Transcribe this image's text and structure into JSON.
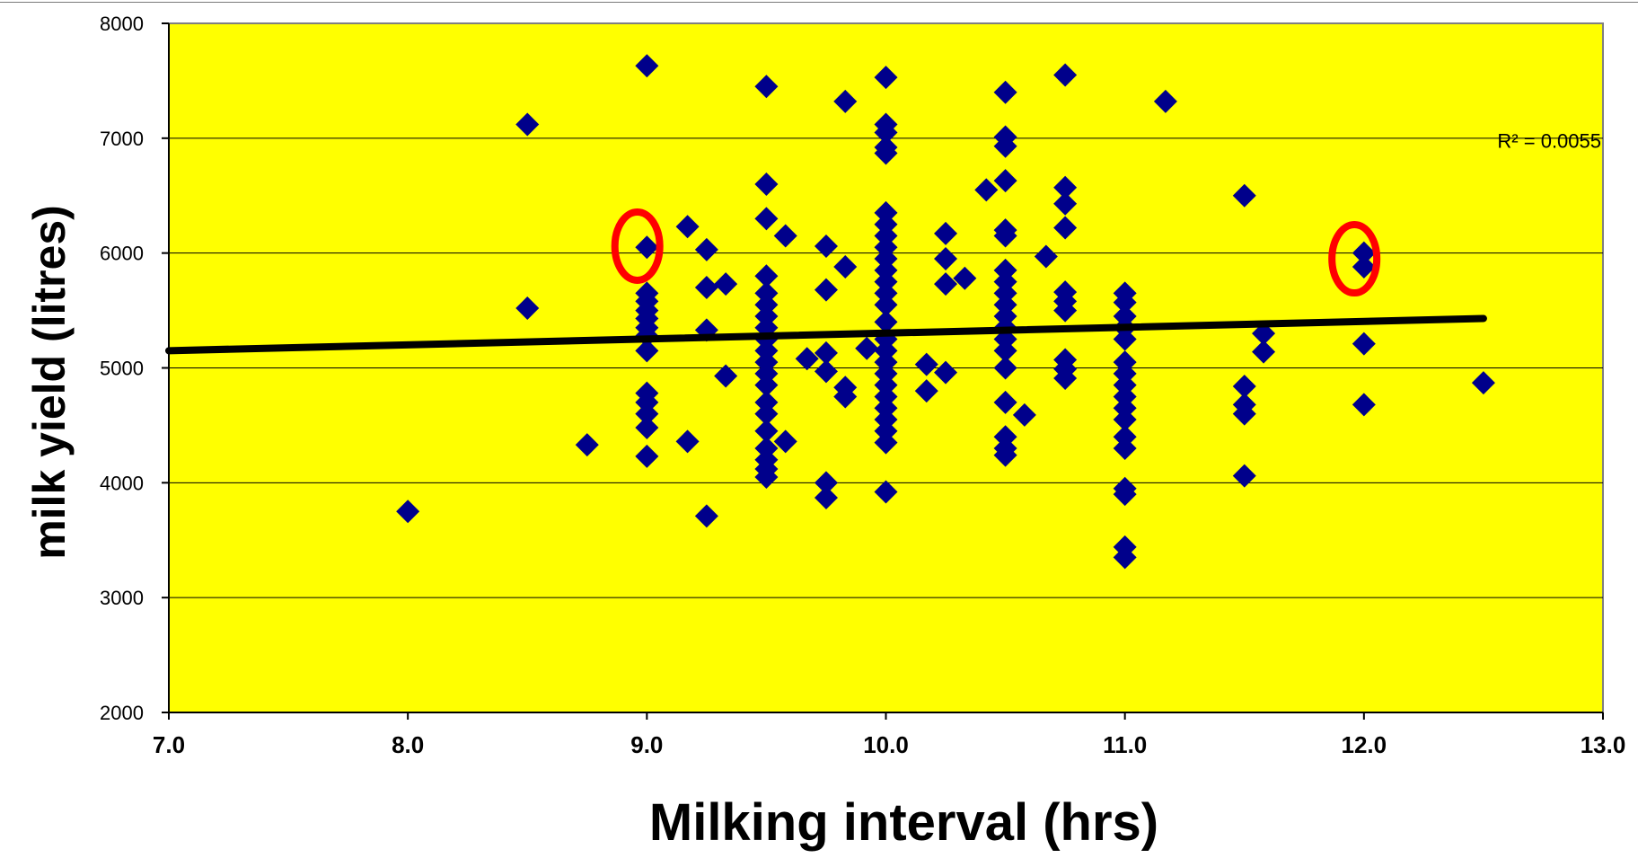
{
  "chart_data": {
    "type": "scatter",
    "xlabel": "Milking interval (hrs)",
    "ylabel": "milk yield (litres)",
    "xlim": [
      7.0,
      13.0
    ],
    "ylim": [
      2000,
      8000
    ],
    "x_ticks": [
      "7.0",
      "8.0",
      "9.0",
      "10.0",
      "11.0",
      "12.0",
      "13.0"
    ],
    "y_ticks": [
      "2000",
      "3000",
      "4000",
      "5000",
      "6000",
      "7000",
      "8000"
    ],
    "grid": "horizontal",
    "plot_background": "#ffff00",
    "marker_color": "#00008b",
    "trendline": {
      "x": [
        7.0,
        12.5
      ],
      "y": [
        5150,
        5430
      ],
      "color": "#000000"
    },
    "annotation": "R² = 0.0055",
    "highlights": [
      {
        "x": 8.96,
        "y": 6060,
        "color": "#ff0000"
      },
      {
        "x": 11.96,
        "y": 5950,
        "color": "#ff0000"
      }
    ],
    "points": [
      [
        8.0,
        3750
      ],
      [
        8.5,
        7120
      ],
      [
        8.5,
        5520
      ],
      [
        8.75,
        4330
      ],
      [
        9.0,
        7630
      ],
      [
        9.0,
        6050
      ],
      [
        9.0,
        5650
      ],
      [
        9.0,
        5580
      ],
      [
        9.0,
        5500
      ],
      [
        9.0,
        5430
      ],
      [
        9.0,
        5350
      ],
      [
        9.0,
        5280
      ],
      [
        9.0,
        5150
      ],
      [
        9.0,
        4780
      ],
      [
        9.0,
        4700
      ],
      [
        9.0,
        4600
      ],
      [
        9.0,
        4480
      ],
      [
        9.0,
        4230
      ],
      [
        9.17,
        6230
      ],
      [
        9.17,
        4360
      ],
      [
        9.25,
        6030
      ],
      [
        9.25,
        5700
      ],
      [
        9.25,
        5330
      ],
      [
        9.25,
        3710
      ],
      [
        9.33,
        5730
      ],
      [
        9.33,
        4930
      ],
      [
        9.5,
        7450
      ],
      [
        9.5,
        6600
      ],
      [
        9.5,
        6300
      ],
      [
        9.5,
        5800
      ],
      [
        9.5,
        5650
      ],
      [
        9.5,
        5550
      ],
      [
        9.5,
        5450
      ],
      [
        9.5,
        5350
      ],
      [
        9.5,
        5250
      ],
      [
        9.5,
        5150
      ],
      [
        9.5,
        5050
      ],
      [
        9.5,
        4950
      ],
      [
        9.5,
        4850
      ],
      [
        9.5,
        4700
      ],
      [
        9.5,
        4600
      ],
      [
        9.5,
        4450
      ],
      [
        9.5,
        4300
      ],
      [
        9.5,
        4200
      ],
      [
        9.5,
        4120
      ],
      [
        9.5,
        4050
      ],
      [
        9.58,
        6150
      ],
      [
        9.58,
        4360
      ],
      [
        9.67,
        5080
      ],
      [
        9.75,
        6060
      ],
      [
        9.75,
        5680
      ],
      [
        9.75,
        5130
      ],
      [
        9.75,
        4970
      ],
      [
        9.75,
        4000
      ],
      [
        9.75,
        3870
      ],
      [
        9.83,
        7320
      ],
      [
        9.83,
        5880
      ],
      [
        9.83,
        4830
      ],
      [
        9.83,
        4750
      ],
      [
        9.92,
        5170
      ],
      [
        10.0,
        7530
      ],
      [
        10.0,
        7120
      ],
      [
        10.0,
        7050
      ],
      [
        10.0,
        6920
      ],
      [
        10.0,
        6870
      ],
      [
        10.0,
        6350
      ],
      [
        10.0,
        6250
      ],
      [
        10.0,
        6150
      ],
      [
        10.0,
        6050
      ],
      [
        10.0,
        5950
      ],
      [
        10.0,
        5850
      ],
      [
        10.0,
        5750
      ],
      [
        10.0,
        5650
      ],
      [
        10.0,
        5550
      ],
      [
        10.0,
        5400
      ],
      [
        10.0,
        5250
      ],
      [
        10.0,
        5150
      ],
      [
        10.0,
        5050
      ],
      [
        10.0,
        4950
      ],
      [
        10.0,
        4850
      ],
      [
        10.0,
        4750
      ],
      [
        10.0,
        4650
      ],
      [
        10.0,
        4550
      ],
      [
        10.0,
        4450
      ],
      [
        10.0,
        4350
      ],
      [
        10.0,
        3920
      ],
      [
        10.17,
        5030
      ],
      [
        10.17,
        4800
      ],
      [
        10.25,
        6170
      ],
      [
        10.25,
        5950
      ],
      [
        10.25,
        5730
      ],
      [
        10.25,
        4960
      ],
      [
        10.33,
        5780
      ],
      [
        10.42,
        6550
      ],
      [
        10.5,
        7400
      ],
      [
        10.5,
        7010
      ],
      [
        10.5,
        6930
      ],
      [
        10.5,
        6630
      ],
      [
        10.5,
        6200
      ],
      [
        10.5,
        6150
      ],
      [
        10.5,
        5850
      ],
      [
        10.5,
        5750
      ],
      [
        10.5,
        5650
      ],
      [
        10.5,
        5550
      ],
      [
        10.5,
        5450
      ],
      [
        10.5,
        5350
      ],
      [
        10.5,
        5250
      ],
      [
        10.5,
        5150
      ],
      [
        10.5,
        5000
      ],
      [
        10.5,
        4700
      ],
      [
        10.5,
        4400
      ],
      [
        10.5,
        4300
      ],
      [
        10.5,
        4240
      ],
      [
        10.58,
        4590
      ],
      [
        10.67,
        5970
      ],
      [
        10.75,
        7550
      ],
      [
        10.75,
        6570
      ],
      [
        10.75,
        6430
      ],
      [
        10.75,
        6220
      ],
      [
        10.75,
        5660
      ],
      [
        10.75,
        5580
      ],
      [
        10.75,
        5500
      ],
      [
        10.75,
        5070
      ],
      [
        10.75,
        4990
      ],
      [
        10.75,
        4910
      ],
      [
        11.0,
        5650
      ],
      [
        11.0,
        5570
      ],
      [
        11.0,
        5450
      ],
      [
        11.0,
        5350
      ],
      [
        11.0,
        5250
      ],
      [
        11.0,
        5050
      ],
      [
        11.0,
        4950
      ],
      [
        11.0,
        4850
      ],
      [
        11.0,
        4750
      ],
      [
        11.0,
        4650
      ],
      [
        11.0,
        4550
      ],
      [
        11.0,
        4400
      ],
      [
        11.0,
        4300
      ],
      [
        11.0,
        3950
      ],
      [
        11.0,
        3900
      ],
      [
        11.0,
        3440
      ],
      [
        11.0,
        3350
      ],
      [
        11.17,
        7320
      ],
      [
        11.5,
        6500
      ],
      [
        11.5,
        4840
      ],
      [
        11.5,
        4680
      ],
      [
        11.5,
        4600
      ],
      [
        11.5,
        4060
      ],
      [
        11.58,
        5300
      ],
      [
        11.58,
        5140
      ],
      [
        12.0,
        6000
      ],
      [
        12.0,
        5880
      ],
      [
        12.0,
        5210
      ],
      [
        12.0,
        4680
      ],
      [
        12.5,
        4870
      ]
    ]
  }
}
